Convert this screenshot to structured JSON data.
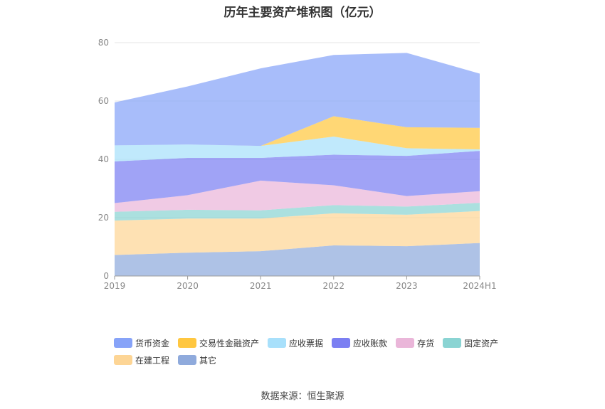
{
  "chart_data": {
    "type": "area",
    "stacked": true,
    "title": "历年主要资产堆积图（亿元）",
    "categories": [
      "2019",
      "2020",
      "2021",
      "2022",
      "2023",
      "2024H1"
    ],
    "ylim": [
      0,
      80
    ],
    "yticks": [
      "0",
      "20",
      "40",
      "60",
      "80"
    ],
    "grid": true,
    "legend_position": "bottom",
    "series": [
      {
        "name": "其它",
        "color": "#8faadc",
        "values": [
          7.2,
          8.0,
          8.5,
          10.5,
          10.2,
          11.3
        ]
      },
      {
        "name": "在建工程",
        "color": "#fdd595",
        "values": [
          11.8,
          11.7,
          11.2,
          11.0,
          10.8,
          11.0
        ]
      },
      {
        "name": "固定资产",
        "color": "#8ad4d3",
        "values": [
          3.0,
          3.0,
          2.8,
          2.8,
          2.8,
          2.8
        ]
      },
      {
        "name": "存货",
        "color": "#eab6d9",
        "values": [
          3.0,
          5.0,
          10.2,
          6.8,
          3.6,
          4.0
        ]
      },
      {
        "name": "应收账款",
        "color": "#7b7ff2",
        "values": [
          14.3,
          12.8,
          7.8,
          10.5,
          13.8,
          13.8
        ]
      },
      {
        "name": "应收票据",
        "color": "#a8e0fb",
        "values": [
          5.5,
          4.6,
          4.1,
          6.2,
          2.6,
          0.5
        ]
      },
      {
        "name": "交易性金融资产",
        "color": "#ffc740",
        "values": [
          0,
          0,
          0,
          7.0,
          7.2,
          7.4
        ]
      },
      {
        "name": "货币资金",
        "color": "#87a3f8",
        "values": [
          14.7,
          19.9,
          26.6,
          21.0,
          25.5,
          18.6
        ]
      }
    ],
    "source": "数据来源：恒生聚源"
  }
}
